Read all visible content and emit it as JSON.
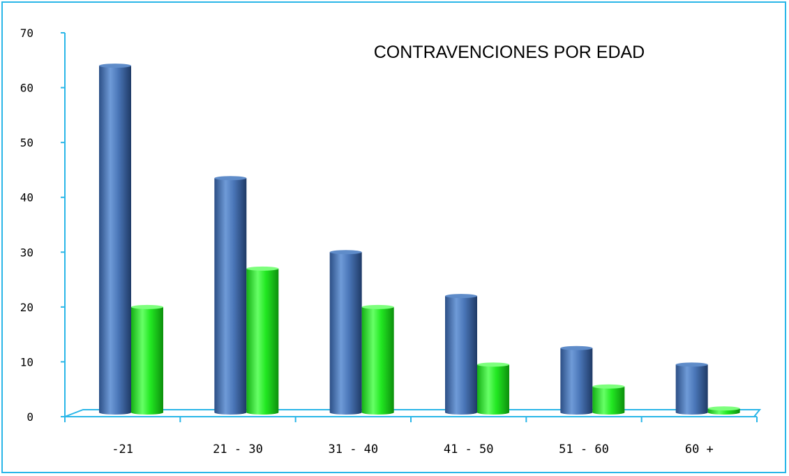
{
  "chart_data": {
    "type": "bar",
    "title": "CONTRAVENCIONES POR EDAD",
    "categories": [
      "-21",
      "21 - 30",
      "31 - 40",
      "41 - 50",
      "51 - 60",
      "60 +"
    ],
    "series": [
      {
        "values": [
          64,
          43.5,
          30,
          22,
          12.5,
          9.5
        ],
        "color": "#4a76b8"
      },
      {
        "values": [
          20,
          27,
          20,
          9.5,
          5.5,
          1.5
        ],
        "color": "#1ee81e"
      }
    ],
    "yticks": [
      "0",
      "10",
      "20",
      "30",
      "40",
      "50",
      "60",
      "70"
    ],
    "ylim": [
      0,
      70
    ],
    "xlabel": "",
    "ylabel": "",
    "grid": false,
    "legend": "none",
    "axis_color": "#29b6e8"
  }
}
